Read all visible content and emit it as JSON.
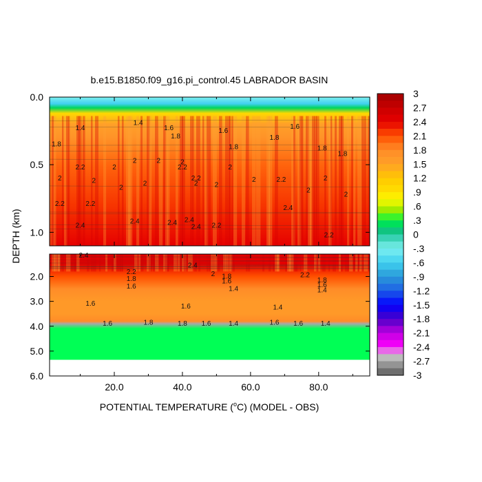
{
  "chart_data": {
    "type": "heatmap",
    "title": "b.e15.B1850.f09_g16.pi_control.45 LABRADOR BASIN",
    "xlabel": "POTENTIAL TEMPERATURE (",
    "xlabel_unit": "C) (MODEL - OBS)",
    "xlabel_degree": "o",
    "ylabel": "DEPTH (km)",
    "xlim": [
      1,
      95
    ],
    "x_ticks": [
      "20.0",
      "40.0",
      "60.0",
      "80.0"
    ],
    "x_tick_values": [
      20,
      40,
      60,
      80
    ],
    "upper_panel": {
      "ylim": [
        0.0,
        1.1
      ],
      "y_ticks": [
        "0.0",
        "0.5",
        "1.0"
      ],
      "y_tick_values": [
        0.0,
        0.5,
        1.0
      ]
    },
    "lower_panel": {
      "ylim": [
        1.1,
        6.0
      ],
      "y_ticks": [
        "2.0",
        "3.0",
        "4.0",
        "5.0",
        "6.0"
      ],
      "y_tick_values": [
        2.0,
        3.0,
        4.0,
        5.0,
        6.0
      ]
    },
    "colorbar": {
      "range": [
        -3,
        3
      ],
      "labels": [
        "3",
        "2.7",
        "2.4",
        "2.1",
        "1.8",
        "1.5",
        "1.2",
        ".9",
        ".6",
        ".3",
        "0",
        "-.3",
        "-.6",
        "-.9",
        "-1.2",
        "-1.5",
        "-1.8",
        "-2.1",
        "-2.4",
        "-2.7",
        "-3"
      ],
      "label_values": [
        3,
        2.7,
        2.4,
        2.1,
        1.8,
        1.5,
        1.2,
        0.9,
        0.6,
        0.3,
        0,
        -0.3,
        -0.6,
        -0.9,
        -1.2,
        -1.5,
        -1.8,
        -2.1,
        -2.4,
        -2.7,
        -3
      ]
    },
    "profile": {
      "depth_km": [
        0.0,
        0.05,
        0.08,
        0.12,
        0.2,
        0.3,
        0.5,
        0.8,
        1.1,
        1.5,
        2.0,
        2.5,
        3.0,
        3.5,
        3.8,
        3.9,
        4.1,
        5.35
      ],
      "anomaly": [
        -0.3,
        -0.6,
        0.2,
        1.0,
        1.5,
        1.7,
        2.0,
        2.2,
        2.4,
        2.4,
        2.1,
        1.8,
        1.6,
        1.6,
        1.8,
        -2.7,
        0.3,
        0.3
      ]
    },
    "contour_labels": [
      {
        "text": "1.4",
        "x": 10,
        "d": 0.23
      },
      {
        "text": "1.8",
        "x": 3,
        "d": 0.35
      },
      {
        "text": "1.4",
        "x": 27,
        "d": 0.19
      },
      {
        "text": "1.6",
        "x": 36,
        "d": 0.23
      },
      {
        "text": "1.8",
        "x": 38,
        "d": 0.29
      },
      {
        "text": "1.6",
        "x": 52,
        "d": 0.25
      },
      {
        "text": "1.8",
        "x": 55,
        "d": 0.37
      },
      {
        "text": "1.8",
        "x": 67,
        "d": 0.3
      },
      {
        "text": "1.6",
        "x": 73,
        "d": 0.22
      },
      {
        "text": "1.8",
        "x": 81,
        "d": 0.38
      },
      {
        "text": "1.8",
        "x": 87,
        "d": 0.42
      },
      {
        "text": "2",
        "x": 26,
        "d": 0.47
      },
      {
        "text": "2",
        "x": 33,
        "d": 0.47
      },
      {
        "text": "2",
        "x": 40,
        "d": 0.48
      },
      {
        "text": "2.2",
        "x": 40,
        "d": 0.52
      },
      {
        "text": "2",
        "x": 54,
        "d": 0.52
      },
      {
        "text": "2",
        "x": 82,
        "d": 0.6
      },
      {
        "text": "2.2",
        "x": 10,
        "d": 0.52
      },
      {
        "text": "2",
        "x": 4,
        "d": 0.6
      },
      {
        "text": "2",
        "x": 14,
        "d": 0.62
      },
      {
        "text": "2",
        "x": 20,
        "d": 0.52
      },
      {
        "text": "2",
        "x": 22,
        "d": 0.67
      },
      {
        "text": "2",
        "x": 29,
        "d": 0.64
      },
      {
        "text": "2",
        "x": 44,
        "d": 0.64
      },
      {
        "text": "2.2",
        "x": 44,
        "d": 0.6
      },
      {
        "text": "2",
        "x": 50,
        "d": 0.65
      },
      {
        "text": "2",
        "x": 61,
        "d": 0.61
      },
      {
        "text": "2.2",
        "x": 69,
        "d": 0.61
      },
      {
        "text": "2",
        "x": 77,
        "d": 0.69
      },
      {
        "text": "2",
        "x": 88,
        "d": 0.72
      },
      {
        "text": "2.2",
        "x": 4,
        "d": 0.79
      },
      {
        "text": "2.2",
        "x": 13,
        "d": 0.79
      },
      {
        "text": "2.4",
        "x": 26,
        "d": 0.92
      },
      {
        "text": "2.4",
        "x": 37,
        "d": 0.93
      },
      {
        "text": "2.4",
        "x": 42,
        "d": 0.91
      },
      {
        "text": "2.4",
        "x": 44,
        "d": 0.96
      },
      {
        "text": "2.2",
        "x": 50,
        "d": 0.95
      },
      {
        "text": "2.4",
        "x": 10,
        "d": 0.95
      },
      {
        "text": "2.4",
        "x": 71,
        "d": 0.82
      },
      {
        "text": "2.2",
        "x": 83,
        "d": 1.02
      },
      {
        "text": "2.4",
        "x": 11,
        "d": 1.15
      },
      {
        "text": "2.2",
        "x": 25,
        "d": 1.82
      },
      {
        "text": "1.8",
        "x": 25,
        "d": 2.1
      },
      {
        "text": "1.6",
        "x": 25,
        "d": 2.4
      },
      {
        "text": "2.4",
        "x": 43,
        "d": 1.55
      },
      {
        "text": "2",
        "x": 49,
        "d": 1.9
      },
      {
        "text": "1.8",
        "x": 53,
        "d": 2.0
      },
      {
        "text": "1.6",
        "x": 53,
        "d": 2.2
      },
      {
        "text": "1.4",
        "x": 55,
        "d": 2.5
      },
      {
        "text": "2.2",
        "x": 76,
        "d": 1.95
      },
      {
        "text": "1.8",
        "x": 81,
        "d": 2.15
      },
      {
        "text": "1.6",
        "x": 81,
        "d": 2.35
      },
      {
        "text": "1.4",
        "x": 81,
        "d": 2.55
      },
      {
        "text": "1.6",
        "x": 13,
        "d": 3.1
      },
      {
        "text": "1.6",
        "x": 41,
        "d": 3.2
      },
      {
        "text": "1.4",
        "x": 68,
        "d": 3.25
      },
      {
        "text": "1.6",
        "x": 18,
        "d": 3.9
      },
      {
        "text": "1.8",
        "x": 30,
        "d": 3.85
      },
      {
        "text": "1.8",
        "x": 40,
        "d": 3.9
      },
      {
        "text": "1.6",
        "x": 47,
        "d": 3.9
      },
      {
        "text": "1.4",
        "x": 55,
        "d": 3.9
      },
      {
        "text": "1.6",
        "x": 67,
        "d": 3.85
      },
      {
        "text": "1.6",
        "x": 74,
        "d": 3.9
      },
      {
        "text": "1.4",
        "x": 82,
        "d": 3.9
      }
    ]
  }
}
